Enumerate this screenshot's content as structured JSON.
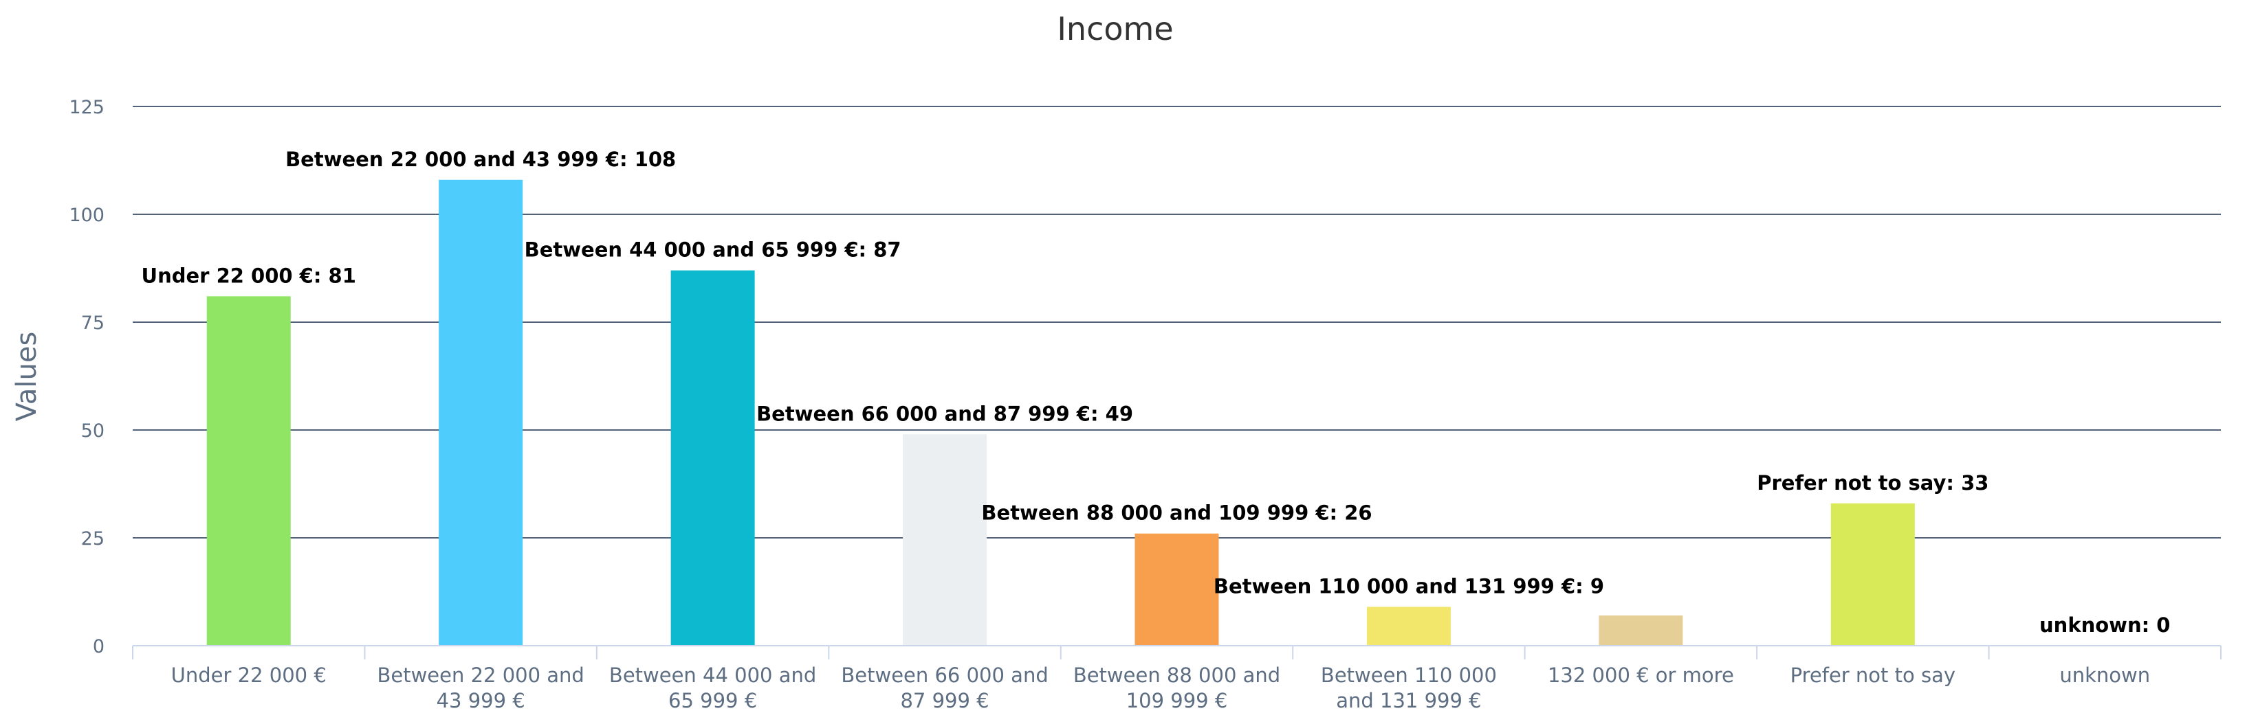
{
  "chart_data": {
    "type": "bar",
    "title": "Income",
    "ylabel": "Values",
    "xlabel": "",
    "ylim": [
      0,
      125
    ],
    "yticks": [
      0,
      25,
      50,
      75,
      100,
      125
    ],
    "grid": true,
    "legend": "none",
    "categories": [
      "Under 22 000 €",
      "Between 22 000 and 43 999 €",
      "Between 44 000 and 65 999 €",
      "Between 66 000 and 87 999 €",
      "Between 88 000 and 109 999 €",
      "Between 110 000 and 131 999 €",
      "132 000 € or more",
      "Prefer not to say",
      "unknown"
    ],
    "category_lines": [
      [
        "Under 22 000 €"
      ],
      [
        "Between 22 000 and",
        "43 999 €"
      ],
      [
        "Between 44 000 and",
        "65 999 €"
      ],
      [
        "Between 66 000 and",
        "87 999 €"
      ],
      [
        "Between 88 000 and",
        "109 999 €"
      ],
      [
        "Between 110 000",
        "and 131 999 €"
      ],
      [
        "132 000 € or more"
      ],
      [
        "Prefer not to say"
      ],
      [
        "unknown"
      ]
    ],
    "values": [
      81,
      108,
      87,
      49,
      26,
      9,
      7,
      33,
      0
    ],
    "data_labels": [
      "Under 22 000 €: 81",
      "Between 22 000 and 43 999 €: 108",
      "Between 44 000 and 65 999 €: 87",
      "Between 66 000 and 87 999 €: 49",
      "Between 88 000 and 109 999 €: 26",
      "Between 110 000 and 131 999 €: 9",
      "",
      "Prefer not to say: 33",
      "unknown: 0"
    ],
    "colors": [
      "#90e565",
      "#4ecdfd",
      "#0db9cf",
      "#ebeff2",
      "#f79f4d",
      "#f2e66b",
      "#e6cf97",
      "#d8ea57",
      "#a3a3a3"
    ]
  }
}
